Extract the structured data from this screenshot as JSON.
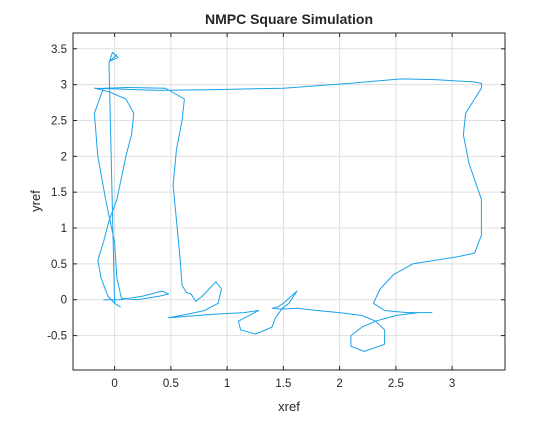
{
  "chart_data": {
    "type": "line",
    "title": "NMPC Square Simulation",
    "xlabel": "xref",
    "ylabel": "yref",
    "xlim": [
      -0.37,
      3.47
    ],
    "ylim": [
      -0.98,
      3.72
    ],
    "xticks": [
      0,
      0.5,
      1,
      1.5,
      2,
      2.5,
      3
    ],
    "xtick_labels": [
      "0",
      "0.5",
      "1",
      "1.5",
      "2",
      "2.5",
      "3"
    ],
    "yticks": [
      -0.5,
      0,
      0.5,
      1,
      1.5,
      2,
      2.5,
      3,
      3.5
    ],
    "ytick_labels": [
      "-0.5",
      "0",
      "0.5",
      "1",
      "1.5",
      "2",
      "2.5",
      "3",
      "3.5"
    ],
    "grid": true,
    "line_color": "#1aa3ec",
    "series": [
      {
        "x": [
          -0.1,
          0.05,
          0.25,
          0.42,
          0.48,
          0.4,
          0.2,
          0.06,
          0.02,
          0.0,
          -0.08,
          -0.15,
          -0.18,
          -0.1,
          0.12,
          0.45,
          0.62,
          0.6,
          0.55,
          0.52,
          0.55,
          0.58,
          0.6,
          0.64,
          0.68,
          0.72,
          0.78,
          0.84,
          0.9,
          0.95,
          0.92,
          0.8,
          0.65,
          0.48,
          0.65,
          0.9,
          1.15,
          1.28,
          1.1,
          1.12,
          1.25,
          1.3,
          1.4,
          1.43,
          1.49,
          1.55,
          1.62,
          1.5,
          1.45,
          1.4,
          1.48,
          1.62,
          1.8,
          2.0,
          2.2,
          2.32,
          2.4,
          2.4,
          2.22,
          2.1,
          2.1,
          2.2,
          2.32,
          2.5,
          2.7,
          2.82,
          2.6,
          2.4,
          2.3,
          2.36,
          2.48,
          2.65,
          2.85,
          3.05,
          3.2,
          3.26,
          3.26,
          3.15,
          3.1,
          3.12,
          3.2,
          3.26,
          3.26,
          3.18,
          3.05,
          2.85,
          2.55,
          2.1,
          1.5,
          0.9,
          0.4,
          0.0,
          -0.18,
          -0.05,
          0.1,
          0.17,
          0.15,
          0.1,
          0.06,
          0.02,
          -0.05,
          -0.1,
          -0.15,
          -0.12,
          -0.06,
          0.0,
          0.05,
          0.0,
          -0.05,
          -0.02,
          0.03,
          -0.04,
          0.02
        ],
        "y": [
          0.0,
          0.0,
          0.05,
          0.12,
          0.08,
          0.05,
          0.0,
          0.02,
          0.3,
          0.8,
          1.4,
          2.0,
          2.6,
          2.95,
          2.96,
          2.95,
          2.8,
          2.5,
          2.1,
          1.6,
          1.1,
          0.6,
          0.2,
          0.1,
          0.08,
          -0.02,
          0.05,
          0.15,
          0.25,
          0.15,
          -0.05,
          -0.15,
          -0.2,
          -0.25,
          -0.23,
          -0.2,
          -0.18,
          -0.15,
          -0.3,
          -0.42,
          -0.48,
          -0.45,
          -0.38,
          -0.25,
          -0.12,
          -0.05,
          0.12,
          -0.05,
          -0.1,
          -0.12,
          -0.13,
          -0.12,
          -0.15,
          -0.18,
          -0.22,
          -0.3,
          -0.42,
          -0.62,
          -0.72,
          -0.65,
          -0.5,
          -0.38,
          -0.3,
          -0.22,
          -0.18,
          -0.18,
          -0.18,
          -0.15,
          -0.05,
          0.15,
          0.35,
          0.5,
          0.55,
          0.6,
          0.65,
          0.9,
          1.4,
          1.9,
          2.3,
          2.6,
          2.8,
          2.95,
          3.02,
          3.04,
          3.05,
          3.07,
          3.08,
          3.02,
          2.95,
          2.93,
          2.92,
          2.94,
          2.95,
          2.9,
          2.8,
          2.6,
          2.3,
          2.0,
          1.7,
          1.4,
          1.1,
          0.8,
          0.55,
          0.3,
          0.05,
          -0.05,
          -0.1,
          -0.05,
          3.3,
          3.45,
          3.38,
          3.33,
          3.42
        ]
      }
    ]
  }
}
